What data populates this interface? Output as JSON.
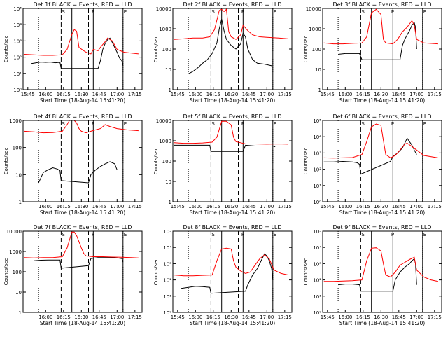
{
  "figure": {
    "colors": {
      "events": "#000000",
      "lld": "#ff0000",
      "axes": "#000000",
      "background": "#ffffff"
    },
    "xlabel": "Start Time (18-Aug-14 15:41:20)",
    "ylabel": "Counts/sec",
    "x_tick_labels_A": [
      "15:45",
      "16:00",
      "16:15",
      "16:30",
      "16:45",
      "17:00",
      "17:15"
    ],
    "x_tick_labels_B": [
      "16:00",
      "16:15",
      "16:30",
      "16:45",
      "17:00",
      "17:15"
    ],
    "markers": [
      "S",
      "P",
      "E"
    ]
  },
  "chart_data": [
    {
      "type": "line",
      "title": "Det 1f BLACK = Events, RED = LLD",
      "ylim": [
        1,
        100000
      ],
      "yscale": "log",
      "y_tick_labels": [
        "10⁰",
        "10¹",
        "10²",
        "10³",
        "10⁴",
        "10⁵"
      ],
      "x_tick_set": "A",
      "series": [
        {
          "name": "Events",
          "color": "#000000",
          "x": [
            "15:48",
            "15:52",
            "15:56",
            "16:00",
            "16:04",
            "16:08",
            "16:12",
            "16:13",
            "16:44",
            "16:46",
            "16:48",
            "16:50",
            "16:52",
            "16:54",
            "16:56",
            "16:58",
            "17:00",
            "17:02",
            "17:04",
            "17:05"
          ],
          "y": [
            40,
            45,
            50,
            48,
            50,
            45,
            48,
            20,
            20,
            60,
            300,
            700,
            1200,
            1500,
            800,
            400,
            200,
            90,
            60,
            30
          ]
        },
        {
          "name": "LLD",
          "color": "#ff0000",
          "x": [
            "15:42",
            "15:50",
            "15:58",
            "16:06",
            "16:14",
            "16:18",
            "16:22",
            "16:24",
            "16:26",
            "16:28",
            "16:32",
            "16:34",
            "16:36",
            "16:38",
            "16:40",
            "16:44",
            "16:46",
            "16:50",
            "16:52",
            "16:56",
            "17:00",
            "17:06",
            "17:12",
            "17:18"
          ],
          "y": [
            150,
            140,
            130,
            130,
            140,
            300,
            2500,
            5000,
            4000,
            400,
            250,
            200,
            180,
            160,
            300,
            250,
            400,
            900,
            1500,
            1000,
            300,
            200,
            180,
            160
          ]
        }
      ]
    },
    {
      "type": "line",
      "title": "Det 2f BLACK = Events, RED = LLD",
      "ylim": [
        1,
        10000
      ],
      "yscale": "log",
      "y_tick_labels": [
        "1",
        "10",
        "100",
        "1000",
        "10000"
      ],
      "x_tick_set": "A",
      "series": [
        {
          "name": "Events",
          "color": "#000000",
          "x": [
            "15:54",
            "15:58",
            "16:02",
            "16:06",
            "16:10",
            "16:14",
            "16:18",
            "16:20",
            "16:22",
            "16:24",
            "16:26",
            "16:30",
            "16:34",
            "16:38",
            "16:40",
            "16:42",
            "16:44",
            "16:48",
            "16:52",
            "16:58",
            "17:04"
          ],
          "y": [
            6,
            8,
            12,
            20,
            30,
            60,
            200,
            1000,
            3000,
            800,
            300,
            150,
            100,
            180,
            600,
            400,
            100,
            30,
            20,
            18,
            15
          ]
        },
        {
          "name": "LLD",
          "color": "#ff0000",
          "x": [
            "15:42",
            "15:50",
            "15:58",
            "16:06",
            "16:12",
            "16:16",
            "16:20",
            "16:22",
            "16:24",
            "16:26",
            "16:28",
            "16:30",
            "16:34",
            "16:38",
            "16:40",
            "16:44",
            "16:48",
            "16:54",
            "17:00",
            "17:10",
            "17:18"
          ],
          "y": [
            300,
            320,
            350,
            350,
            400,
            900,
            8000,
            9000,
            7000,
            9000,
            700,
            400,
            300,
            500,
            1500,
            800,
            500,
            400,
            380,
            350,
            320
          ]
        }
      ]
    },
    {
      "type": "line",
      "title": "Det 3f BLACK = Events, RED = LLD",
      "ylim": [
        1,
        10000
      ],
      "yscale": "log",
      "y_tick_labels": [
        "1",
        "10",
        "100",
        "1000",
        "10000"
      ],
      "x_tick_set": "A",
      "series": [
        {
          "name": "Events",
          "color": "#000000",
          "x": [
            "15:54",
            "16:00",
            "16:06",
            "16:12",
            "16:14",
            "16:46",
            "16:48",
            "16:50",
            "16:52",
            "16:54",
            "16:56",
            "16:58",
            "16:59",
            "17:00"
          ],
          "y": [
            55,
            60,
            60,
            60,
            30,
            30,
            150,
            300,
            500,
            800,
            1500,
            2000,
            1200,
            100
          ]
        },
        {
          "name": "LLD",
          "color": "#ff0000",
          "x": [
            "15:42",
            "15:50",
            "15:58",
            "16:06",
            "16:14",
            "16:18",
            "16:22",
            "16:26",
            "16:30",
            "16:32",
            "16:34",
            "16:40",
            "16:44",
            "16:48",
            "16:52",
            "16:56",
            "16:58",
            "17:00",
            "17:06",
            "17:18"
          ],
          "y": [
            200,
            180,
            180,
            190,
            200,
            400,
            6000,
            9000,
            5000,
            300,
            200,
            180,
            300,
            700,
            1200,
            2500,
            1500,
            300,
            200,
            180
          ]
        }
      ]
    },
    {
      "type": "line",
      "title": "Det 4f BLACK = Events, RED = LLD",
      "ylim": [
        1,
        1000
      ],
      "yscale": "log",
      "y_tick_labels": [
        "1",
        "10",
        "100",
        "1000"
      ],
      "x_tick_set": "B",
      "series": [
        {
          "name": "Events",
          "color": "#000000",
          "x": [
            "15:54",
            "15:58",
            "16:02",
            "16:06",
            "16:10",
            "16:12",
            "16:13",
            "16:36",
            "16:38",
            "16:42",
            "16:46",
            "16:50",
            "16:54",
            "16:58",
            "17:00"
          ],
          "y": [
            5,
            12,
            15,
            18,
            16,
            14,
            6,
            5,
            10,
            15,
            20,
            25,
            30,
            25,
            15
          ]
        },
        {
          "name": "LLD",
          "color": "#ff0000",
          "x": [
            "15:42",
            "15:50",
            "15:58",
            "16:06",
            "16:14",
            "16:18",
            "16:20",
            "16:22",
            "16:24",
            "16:26",
            "16:28",
            "16:30",
            "16:34",
            "16:38",
            "16:42",
            "16:46",
            "16:50",
            "16:54",
            "17:00",
            "17:08",
            "17:18"
          ],
          "y": [
            400,
            380,
            350,
            360,
            400,
            700,
            1000,
            1000,
            1000,
            800,
            500,
            400,
            350,
            400,
            450,
            500,
            700,
            600,
            500,
            450,
            420
          ]
        }
      ]
    },
    {
      "type": "line",
      "title": "Det 5f BLACK = Events, RED = LLD",
      "ylim": [
        1,
        10000
      ],
      "yscale": "log",
      "y_tick_labels": [
        "1",
        "10",
        "100",
        "1000",
        "10000"
      ],
      "x_tick_set": "A",
      "series": [
        {
          "name": "Events",
          "color": "#000000",
          "x": [
            "15:42",
            "15:50",
            "15:58",
            "16:06",
            "16:12",
            "16:13",
            "16:40",
            "16:42",
            "16:50",
            "16:58",
            "17:05",
            "17:07"
          ],
          "y": [
            600,
            600,
            600,
            600,
            600,
            300,
            300,
            600,
            550,
            550,
            550,
            500
          ]
        },
        {
          "name": "LLD",
          "color": "#ff0000",
          "x": [
            "15:42",
            "15:50",
            "15:58",
            "16:06",
            "16:14",
            "16:18",
            "16:22",
            "16:26",
            "16:30",
            "16:32",
            "16:34",
            "16:38",
            "16:42",
            "16:50",
            "17:00",
            "17:10",
            "17:18"
          ],
          "y": [
            800,
            750,
            750,
            780,
            850,
            1500,
            9000,
            9000,
            6000,
            1500,
            900,
            800,
            700,
            700,
            680,
            700,
            680
          ]
        }
      ]
    },
    {
      "type": "line",
      "title": "Det 6f BLACK = Events, RED = LLD",
      "ylim": [
        1,
        100000
      ],
      "yscale": "log",
      "y_tick_labels": [
        "10⁰",
        "10¹",
        "10²",
        "10³",
        "10⁴",
        "10⁵"
      ],
      "x_tick_set": "A",
      "series": [
        {
          "name": "Events",
          "color": "#000000",
          "x": [
            "15:42",
            "15:50",
            "15:58",
            "16:06",
            "16:10",
            "16:12",
            "16:13",
            "16:38",
            "16:40",
            "16:44",
            "16:48",
            "16:52",
            "16:56",
            "16:58",
            "17:00"
          ],
          "y": [
            280,
            280,
            300,
            280,
            250,
            200,
            50,
            300,
            600,
            1000,
            2000,
            8000,
            3000,
            1500,
            800
          ]
        },
        {
          "name": "LLD",
          "color": "#ff0000",
          "x": [
            "15:42",
            "15:50",
            "15:58",
            "16:06",
            "16:14",
            "16:18",
            "16:22",
            "16:26",
            "16:30",
            "16:32",
            "16:34",
            "16:38",
            "16:42",
            "16:46",
            "16:50",
            "16:52",
            "16:56",
            "17:00",
            "17:06",
            "17:18"
          ],
          "y": [
            500,
            480,
            500,
            520,
            800,
            5000,
            40000,
            60000,
            50000,
            6000,
            800,
            500,
            700,
            1500,
            3500,
            4000,
            2500,
            1500,
            700,
            500
          ]
        }
      ]
    },
    {
      "type": "line",
      "title": "Det 7f BLACK = Events, RED = LLD",
      "ylim": [
        1,
        10000
      ],
      "yscale": "log",
      "y_tick_labels": [
        "1",
        "10",
        "100",
        "1000",
        "10000"
      ],
      "x_tick_set": "B",
      "series": [
        {
          "name": "Events",
          "color": "#000000",
          "x": [
            "15:50",
            "15:56",
            "16:02",
            "16:08",
            "16:12",
            "16:13",
            "16:36",
            "16:38",
            "16:44",
            "16:50",
            "16:56",
            "17:00",
            "17:04",
            "17:05"
          ],
          "y": [
            350,
            370,
            380,
            380,
            380,
            150,
            200,
            450,
            500,
            500,
            500,
            480,
            450,
            300
          ]
        },
        {
          "name": "LLD",
          "color": "#ff0000",
          "x": [
            "15:42",
            "15:50",
            "15:58",
            "16:06",
            "16:14",
            "16:18",
            "16:22",
            "16:24",
            "16:26",
            "16:30",
            "16:32",
            "16:34",
            "16:40",
            "16:48",
            "16:56",
            "17:04",
            "17:12",
            "17:18"
          ],
          "y": [
            500,
            480,
            500,
            500,
            550,
            1500,
            9000,
            9000,
            6000,
            1500,
            800,
            600,
            550,
            550,
            530,
            520,
            500,
            480
          ]
        }
      ]
    },
    {
      "type": "line",
      "title": "Det 8f BLACK = Events, RED = LLD",
      "ylim": [
        1,
        100000
      ],
      "yscale": "log",
      "y_tick_labels": [
        "10⁰",
        "10¹",
        "10²",
        "10³",
        "10⁴",
        "10⁵"
      ],
      "x_tick_set": "A",
      "series": [
        {
          "name": "Events",
          "color": "#000000",
          "x": [
            "15:48",
            "15:54",
            "16:00",
            "16:06",
            "16:12",
            "16:13",
            "16:42",
            "16:44",
            "16:48",
            "16:52",
            "16:56",
            "16:58",
            "17:00",
            "17:02",
            "17:04",
            "17:05"
          ],
          "y": [
            30,
            35,
            40,
            38,
            35,
            15,
            20,
            50,
            200,
            500,
            2000,
            4000,
            3000,
            1500,
            500,
            100
          ]
        },
        {
          "name": "LLD",
          "color": "#ff0000",
          "x": [
            "15:42",
            "15:50",
            "15:58",
            "16:06",
            "16:14",
            "16:18",
            "16:22",
            "16:26",
            "16:30",
            "16:32",
            "16:34",
            "16:38",
            "16:42",
            "16:46",
            "16:50",
            "16:54",
            "16:58",
            "17:02",
            "17:06",
            "17:12",
            "17:18"
          ],
          "y": [
            200,
            180,
            180,
            190,
            200,
            1500,
            8000,
            9000,
            8000,
            1500,
            600,
            350,
            250,
            300,
            800,
            2000,
            3500,
            2000,
            400,
            250,
            200
          ]
        }
      ]
    },
    {
      "type": "line",
      "title": "Det 9f BLACK = Events, RED = LLD",
      "ylim": [
        1,
        100000
      ],
      "yscale": "log",
      "y_tick_labels": [
        "10⁰",
        "10¹",
        "10²",
        "10³",
        "10⁴",
        "10⁵"
      ],
      "x_tick_set": "A",
      "series": [
        {
          "name": "Events",
          "color": "#000000",
          "x": [
            "15:54",
            "16:00",
            "16:06",
            "16:12",
            "16:13",
            "16:40",
            "16:42",
            "16:46",
            "16:50",
            "16:54",
            "16:56",
            "16:58",
            "16:59",
            "17:00"
          ],
          "y": [
            50,
            55,
            55,
            50,
            20,
            20,
            100,
            300,
            600,
            1000,
            1500,
            2000,
            1000,
            50
          ]
        },
        {
          "name": "LLD",
          "color": "#ff0000",
          "x": [
            "15:42",
            "15:50",
            "15:58",
            "16:06",
            "16:14",
            "16:18",
            "16:22",
            "16:26",
            "16:30",
            "16:32",
            "16:34",
            "16:38",
            "16:42",
            "16:46",
            "16:50",
            "16:54",
            "16:58",
            "17:00",
            "17:06",
            "17:12",
            "17:18"
          ],
          "y": [
            80,
            80,
            85,
            90,
            100,
            1500,
            9000,
            9500,
            6000,
            1000,
            200,
            150,
            300,
            800,
            1200,
            1800,
            2500,
            400,
            150,
            100,
            80
          ]
        }
      ]
    }
  ]
}
